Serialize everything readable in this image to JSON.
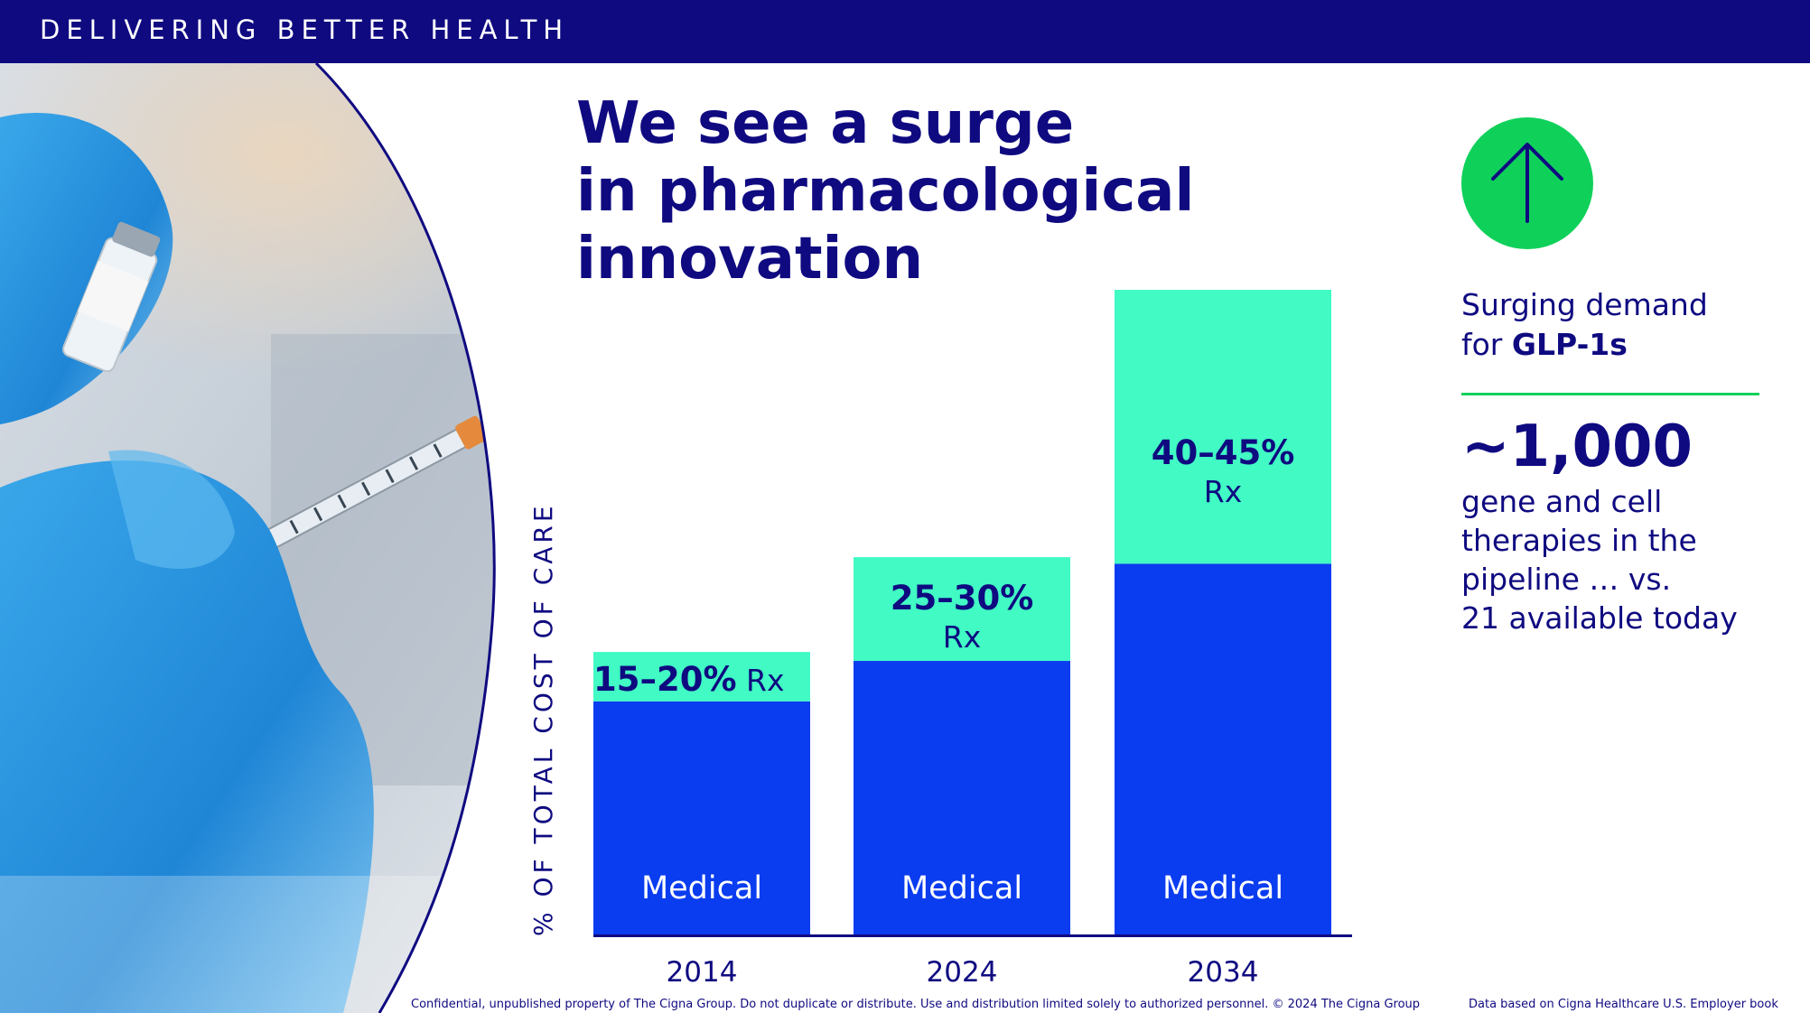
{
  "header": {
    "title": "DELIVERING BETTER HEALTH"
  },
  "headline": {
    "line1": "We see a surge",
    "line2": "in pharmacological",
    "line3": "innovation"
  },
  "chart_data": {
    "type": "bar",
    "stacked": true,
    "categories": [
      "2014",
      "2024",
      "2034"
    ],
    "ylabel": "% OF TOTAL COST OF CARE",
    "series": [
      {
        "name": "Medical",
        "values": [
          82.5,
          72.5,
          57.5
        ],
        "color": "#0a3cf0"
      },
      {
        "name": "Rx",
        "values": [
          17.5,
          27.5,
          42.5
        ],
        "color": "#41fac4"
      }
    ],
    "rx_labels": [
      {
        "range": "15–20%",
        "suffix": "Rx"
      },
      {
        "range": "25–30%",
        "suffix": "Rx"
      },
      {
        "range": "40–45%",
        "suffix": "Rx"
      }
    ],
    "medical_label": "Medical",
    "bar_heights_index": [
      14.9,
      19.9,
      34.0
    ]
  },
  "side": {
    "demand_line1": "Surging demand",
    "demand_prefix": "for ",
    "demand_bold": "GLP-1s",
    "big_number": "~1,000",
    "therapy_line1": "gene and cell",
    "therapy_line2": "therapies in the",
    "therapy_line3": "pipeline … vs.",
    "therapy_line4": "21 available today",
    "icon": "up-arrow-icon",
    "accent": "#0fd15a"
  },
  "footer": {
    "confidential": "Confidential, unpublished property of The Cigna Group. Do not duplicate or distribute. Use and distribution limited solely to authorized personnel. © 2024 The Cigna Group",
    "source": "Data based on Cigna Healthcare U.S. Employer book"
  },
  "colors": {
    "navy": "#0f0a80",
    "medical": "#0a3cf0",
    "rx": "#41fac4",
    "green": "#0fd15a"
  }
}
